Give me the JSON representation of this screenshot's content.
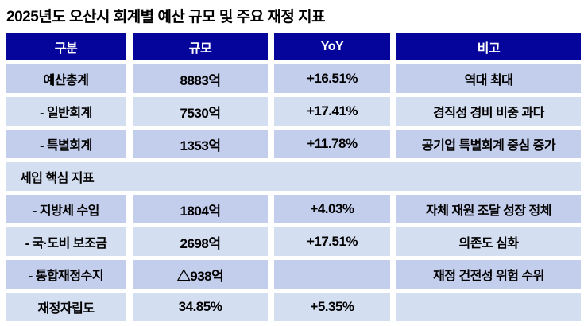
{
  "chart_data": {
    "type": "table",
    "title": "2025년도 오산시 회계별 예산 규모 및 주요 재정 지표",
    "columns": [
      "구분",
      "규모",
      "YoY",
      "비고"
    ],
    "rows": [
      {
        "label": "예산총계",
        "amount": "8883억",
        "yoy": "+16.51%",
        "note": "역대 최대"
      },
      {
        "label": "- 일반회계",
        "amount": "7530억",
        "yoy": "+17.41%",
        "note": "경직성 경비 비중 과다"
      },
      {
        "label": "- 특별회계",
        "amount": "1353억",
        "yoy": "+11.78%",
        "note": "공기업 특별회계 중심 증가"
      },
      {
        "section_label": "세입 핵심 지표"
      },
      {
        "label": "- 지방세 수입",
        "amount": "1804억",
        "yoy": "+4.03%",
        "note": "자체 재원 조달 성장 정체"
      },
      {
        "label": "- 국·도비 보조금",
        "amount": "2698억",
        "yoy": "+17.51%",
        "note": "의존도 심화"
      },
      {
        "label": "- 통합재정수지",
        "amount": "△938억",
        "yoy": "",
        "note": "재정 건전성 위험 수위"
      },
      {
        "label": "재정자립도",
        "amount": "34.85%",
        "yoy": "+5.35%",
        "note": ""
      }
    ]
  },
  "colors": {
    "header_bg": "#05059c",
    "header_text": "#ffffff",
    "row_alt_dark": "#c3cdec",
    "row_alt_light": "#d4def1",
    "body_text": "#000000"
  }
}
